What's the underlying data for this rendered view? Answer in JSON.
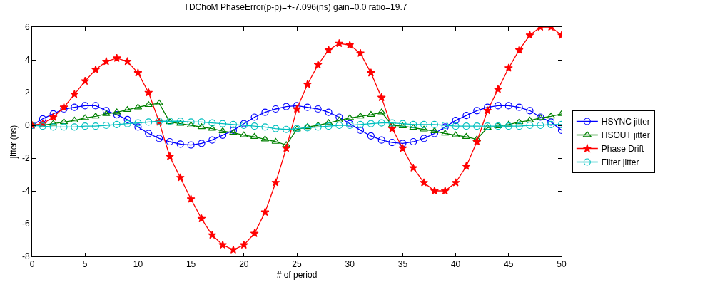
{
  "chart_data": {
    "type": "line",
    "title": "TDChoM PhaseError(p-p)=+-7.096(ns) gain=0.0 ratio=19.7",
    "xlabel": "# of period",
    "ylabel": "jitter (ns)",
    "x": [
      0,
      1,
      2,
      3,
      4,
      5,
      6,
      7,
      8,
      9,
      10,
      11,
      12,
      13,
      14,
      15,
      16,
      17,
      18,
      19,
      20,
      21,
      22,
      23,
      24,
      25,
      26,
      27,
      28,
      29,
      30,
      31,
      32,
      33,
      34,
      35,
      36,
      37,
      38,
      39,
      40,
      41,
      42,
      43,
      44,
      45,
      46,
      47,
      48,
      49,
      50
    ],
    "series": [
      {
        "name": "HSYNC jitter",
        "color": "#0000ff",
        "marker": "circle",
        "values": [
          0,
          0.4,
          0.7,
          1.0,
          1.1,
          1.2,
          1.2,
          0.9,
          0.65,
          0.35,
          -0.1,
          -0.5,
          -0.8,
          -1.0,
          -1.15,
          -1.2,
          -1.1,
          -0.9,
          -0.6,
          -0.3,
          0.1,
          0.5,
          0.8,
          1.0,
          1.15,
          1.2,
          1.1,
          1.0,
          0.8,
          0.5,
          0.1,
          -0.3,
          -0.65,
          -0.9,
          -1.05,
          -1.1,
          -1.0,
          -0.8,
          -0.5,
          -0.1,
          0.3,
          0.6,
          0.9,
          1.1,
          1.2,
          1.2,
          1.1,
          0.9,
          0.5,
          0.2,
          -0.3
        ]
      },
      {
        "name": "HSOUT jitter",
        "color": "#008000",
        "marker": "triangle",
        "values": [
          0,
          0,
          0.1,
          0.2,
          0.3,
          0.45,
          0.55,
          0.7,
          0.8,
          0.95,
          1.1,
          1.25,
          1.35,
          0.2,
          0.1,
          0.0,
          -0.1,
          -0.2,
          -0.35,
          -0.45,
          -0.6,
          -0.7,
          -0.85,
          -1.0,
          -1.2,
          -0.25,
          -0.1,
          0.0,
          0.15,
          0.3,
          0.45,
          0.55,
          0.65,
          0.8,
          0.0,
          -0.05,
          -0.15,
          -0.25,
          -0.35,
          -0.5,
          -0.6,
          -0.7,
          -0.85,
          -0.15,
          -0.05,
          0.05,
          0.2,
          0.3,
          0.45,
          0.55,
          0.7
        ]
      },
      {
        "name": "Phase Drift",
        "color": "#ff0000",
        "marker": "star",
        "values": [
          0,
          0.1,
          0.5,
          1.1,
          1.9,
          2.7,
          3.4,
          3.9,
          4.1,
          3.9,
          3.2,
          2.0,
          0.2,
          -1.9,
          -3.2,
          -4.5,
          -5.7,
          -6.7,
          -7.3,
          -7.6,
          -7.3,
          -6.6,
          -5.3,
          -3.5,
          -1.4,
          1.0,
          2.5,
          3.7,
          4.6,
          5.0,
          4.9,
          4.4,
          3.2,
          1.7,
          -0.2,
          -1.4,
          -2.6,
          -3.5,
          -4.0,
          -4.0,
          -3.5,
          -2.5,
          -1.0,
          0.9,
          2.2,
          3.5,
          4.6,
          5.5,
          6.0,
          6.0,
          5.5
        ]
      },
      {
        "name": "Filter jitter",
        "color": "#00bfbf",
        "marker": "circle",
        "values": [
          0,
          -0.05,
          -0.1,
          -0.1,
          -0.1,
          -0.05,
          -0.05,
          0.0,
          0.05,
          0.1,
          0.15,
          0.2,
          0.25,
          0.25,
          0.25,
          0.2,
          0.2,
          0.15,
          0.1,
          0.05,
          0.0,
          -0.05,
          -0.1,
          -0.2,
          -0.25,
          -0.2,
          -0.15,
          -0.1,
          -0.05,
          0.0,
          0.0,
          0.05,
          0.1,
          0.15,
          0.15,
          0.1,
          0.05,
          0.05,
          0.05,
          0.0,
          -0.05,
          -0.05,
          -0.05,
          -0.05,
          -0.05,
          -0.05,
          -0.05,
          0.0,
          0.0,
          0.05,
          0.05
        ]
      }
    ],
    "xlim": [
      0,
      50
    ],
    "xticks": [
      0,
      5,
      10,
      15,
      20,
      25,
      30,
      35,
      40,
      45,
      50
    ],
    "ylim": [
      -8,
      6
    ],
    "yticks": [
      -8,
      -6,
      -4,
      -2,
      0,
      2,
      4,
      6
    ],
    "legend": "right",
    "line_style": "solid"
  }
}
